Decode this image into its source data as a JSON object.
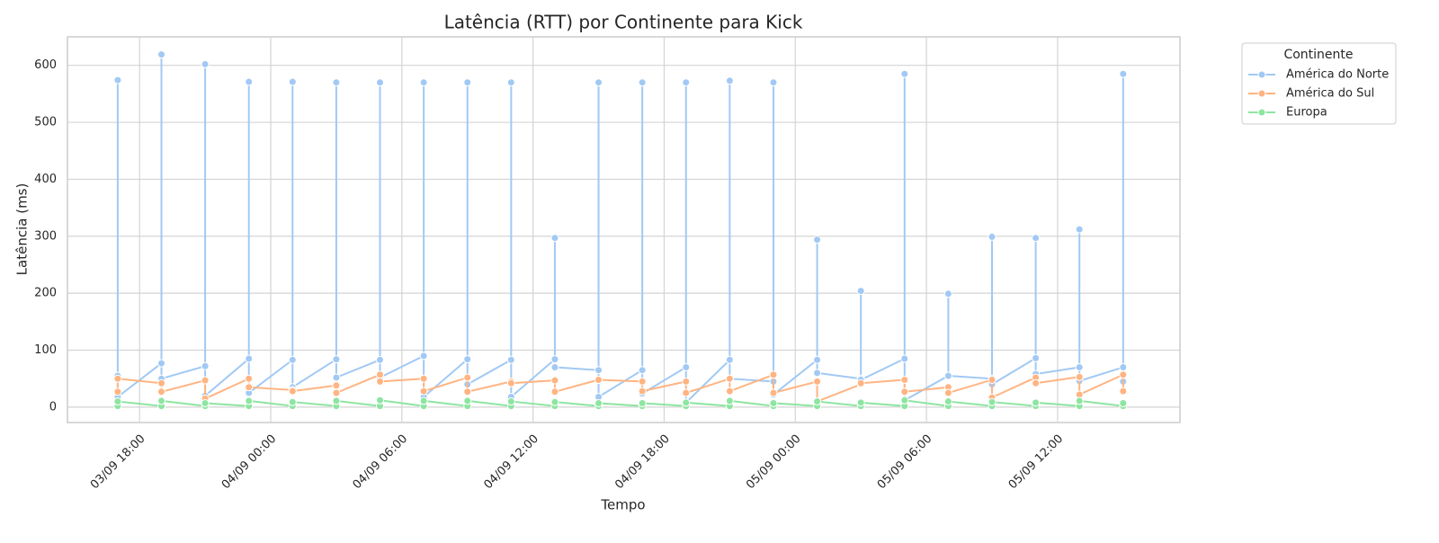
{
  "chart_data": {
    "type": "line",
    "title": "Latência (RTT) por Continente para Kick",
    "x_label": "Tempo",
    "y_label": "Latência (ms)",
    "legend_title": "Continente",
    "legend_position": "outside-right",
    "grid": true,
    "xlim": [
      14.7,
      65.6
    ],
    "ylim": [
      -27,
      650
    ],
    "xticks": [
      {
        "value": 18,
        "label": "03/09 18:00"
      },
      {
        "value": 24,
        "label": "04/09 00:00"
      },
      {
        "value": 30,
        "label": "04/09 06:00"
      },
      {
        "value": 36,
        "label": "04/09 12:00"
      },
      {
        "value": 42,
        "label": "04/09 18:00"
      },
      {
        "value": 48,
        "label": "05/09 00:00"
      },
      {
        "value": 54,
        "label": "05/09 06:00"
      },
      {
        "value": 60,
        "label": "05/09 12:00"
      }
    ],
    "yticks": [
      0,
      100,
      200,
      300,
      400,
      500,
      600
    ],
    "series": [
      {
        "name": "América do Norte",
        "color": "#a1c9f4",
        "x": [
          17,
          17,
          17,
          19,
          19,
          19,
          21,
          21,
          21,
          23,
          23,
          23,
          25,
          25,
          25,
          27,
          27,
          27,
          29,
          29,
          29,
          31,
          31,
          31,
          33,
          33,
          33,
          35,
          35,
          35,
          37,
          37,
          37,
          39,
          39,
          39,
          41,
          41,
          41,
          43,
          43,
          43,
          45,
          45,
          45,
          47,
          47,
          47,
          49,
          49,
          49,
          51,
          51,
          51,
          53,
          53,
          53,
          55,
          55,
          55,
          57,
          57,
          57,
          59,
          59,
          59,
          61,
          61,
          61,
          63,
          63,
          63
        ],
        "values": [
          55,
          574,
          18,
          77,
          619,
          50,
          72,
          602,
          20,
          85,
          571,
          25,
          83,
          571,
          35,
          84,
          570,
          52,
          83,
          570,
          52,
          90,
          570,
          18,
          84,
          570,
          40,
          83,
          570,
          18,
          84,
          297,
          70,
          65,
          570,
          18,
          65,
          570,
          24,
          70,
          570,
          8,
          83,
          573,
          50,
          45,
          570,
          22,
          83,
          294,
          60,
          50,
          204,
          48,
          85,
          585,
          12,
          55,
          199,
          55,
          50,
          299,
          40,
          86,
          297,
          58,
          70,
          312,
          46,
          70,
          585,
          45
        ]
      },
      {
        "name": "América do Sul",
        "color": "#ffb482",
        "x": [
          17,
          17,
          19,
          19,
          21,
          21,
          23,
          23,
          25,
          25,
          27,
          27,
          29,
          29,
          31,
          31,
          33,
          33,
          35,
          35,
          37,
          37,
          39,
          39,
          41,
          41,
          43,
          43,
          45,
          45,
          47,
          47,
          49,
          49,
          51,
          51,
          53,
          53,
          55,
          55,
          57,
          57,
          59,
          59,
          61,
          61,
          63,
          63
        ],
        "values": [
          27,
          50,
          42,
          27,
          47,
          15,
          50,
          35,
          30,
          28,
          38,
          25,
          57,
          45,
          50,
          28,
          52,
          27,
          45,
          42,
          47,
          27,
          48,
          48,
          45,
          28,
          45,
          25,
          50,
          28,
          57,
          25,
          45,
          10,
          40,
          42,
          48,
          27,
          35,
          25,
          48,
          17,
          52,
          42,
          53,
          22,
          57,
          28
        ]
      },
      {
        "name": "Europa",
        "color": "#8de5a1",
        "x": [
          17,
          17,
          19,
          19,
          21,
          21,
          23,
          23,
          25,
          25,
          27,
          27,
          29,
          29,
          31,
          31,
          33,
          33,
          35,
          35,
          37,
          37,
          39,
          39,
          41,
          41,
          43,
          43,
          45,
          45,
          47,
          47,
          49,
          49,
          51,
          51,
          53,
          53,
          55,
          55,
          57,
          57,
          59,
          59,
          61,
          61,
          63,
          63
        ],
        "values": [
          2,
          10,
          2,
          11,
          2,
          7,
          2,
          11,
          2,
          9,
          2,
          11,
          2,
          12,
          2,
          11,
          2,
          11,
          2,
          10,
          2,
          9,
          2,
          7,
          2,
          7,
          2,
          8,
          2,
          11,
          2,
          7,
          2,
          10,
          2,
          8,
          2,
          12,
          2,
          10,
          2,
          9,
          2,
          8,
          2,
          11,
          2,
          7
        ]
      }
    ]
  }
}
